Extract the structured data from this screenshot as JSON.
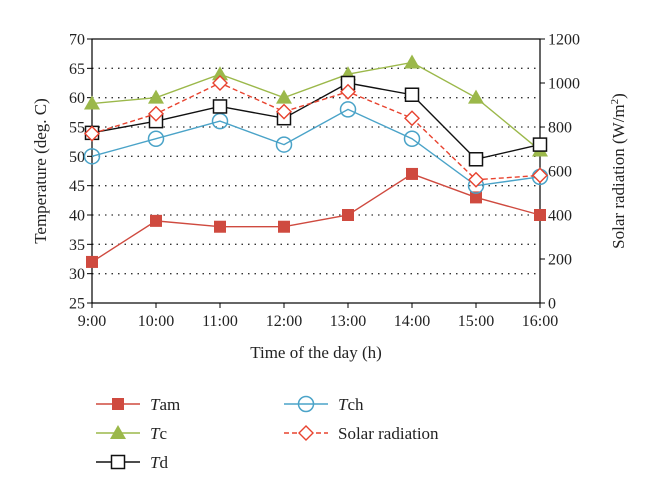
{
  "chart_data": {
    "type": "line",
    "xlabel": "Time of the day (h)",
    "ylabel": "Temperature (deg. C)",
    "ylabel_right": {
      "base": "Solar radiation (W/m",
      "sup": "2",
      "tail": ")"
    },
    "categories": [
      "9:00",
      "10:00",
      "11:00",
      "12:00",
      "13:00",
      "14:00",
      "15:00",
      "16:00"
    ],
    "ylim": [
      25,
      70
    ],
    "yticks": [
      25,
      30,
      35,
      40,
      45,
      50,
      55,
      60,
      65,
      70
    ],
    "ylim_right": [
      0,
      1200
    ],
    "yticks_right": [
      0,
      200,
      400,
      600,
      800,
      1000,
      1200
    ],
    "grid": "horizontal dotted",
    "legend_position": "bottom",
    "series": [
      {
        "key": "tam",
        "name_italic": "T",
        "name_rest": "am",
        "axis": "left",
        "color": "#cf4a3f",
        "marker": "square-filled",
        "dash": false,
        "values": [
          32,
          39,
          38,
          38,
          40,
          47,
          43,
          40
        ]
      },
      {
        "key": "tc",
        "name_italic": "T",
        "name_rest": "c",
        "axis": "left",
        "color": "#9bb84a",
        "marker": "triangle-filled",
        "dash": false,
        "values": [
          59,
          60,
          64,
          60,
          64,
          66,
          60,
          51
        ]
      },
      {
        "key": "td",
        "name_italic": "T",
        "name_rest": "d",
        "axis": "left",
        "color": "#111111",
        "marker": "square-open",
        "dash": false,
        "values": [
          54,
          56,
          58.5,
          56.5,
          62.5,
          60.5,
          49.5,
          52
        ]
      },
      {
        "key": "tch",
        "name_italic": "T",
        "name_rest": "ch",
        "axis": "left",
        "color": "#4aa3c8",
        "marker": "circle-open",
        "dash": false,
        "values": [
          50,
          53,
          56,
          52,
          58,
          53,
          45,
          46.5
        ]
      },
      {
        "key": "solar",
        "name_italic": "",
        "name_rest": "Solar radiation",
        "axis": "right",
        "color": "#e8432f",
        "marker": "diamond-open",
        "dash": true,
        "values": [
          770,
          860,
          1000,
          870,
          960,
          840,
          560,
          580
        ]
      }
    ]
  }
}
